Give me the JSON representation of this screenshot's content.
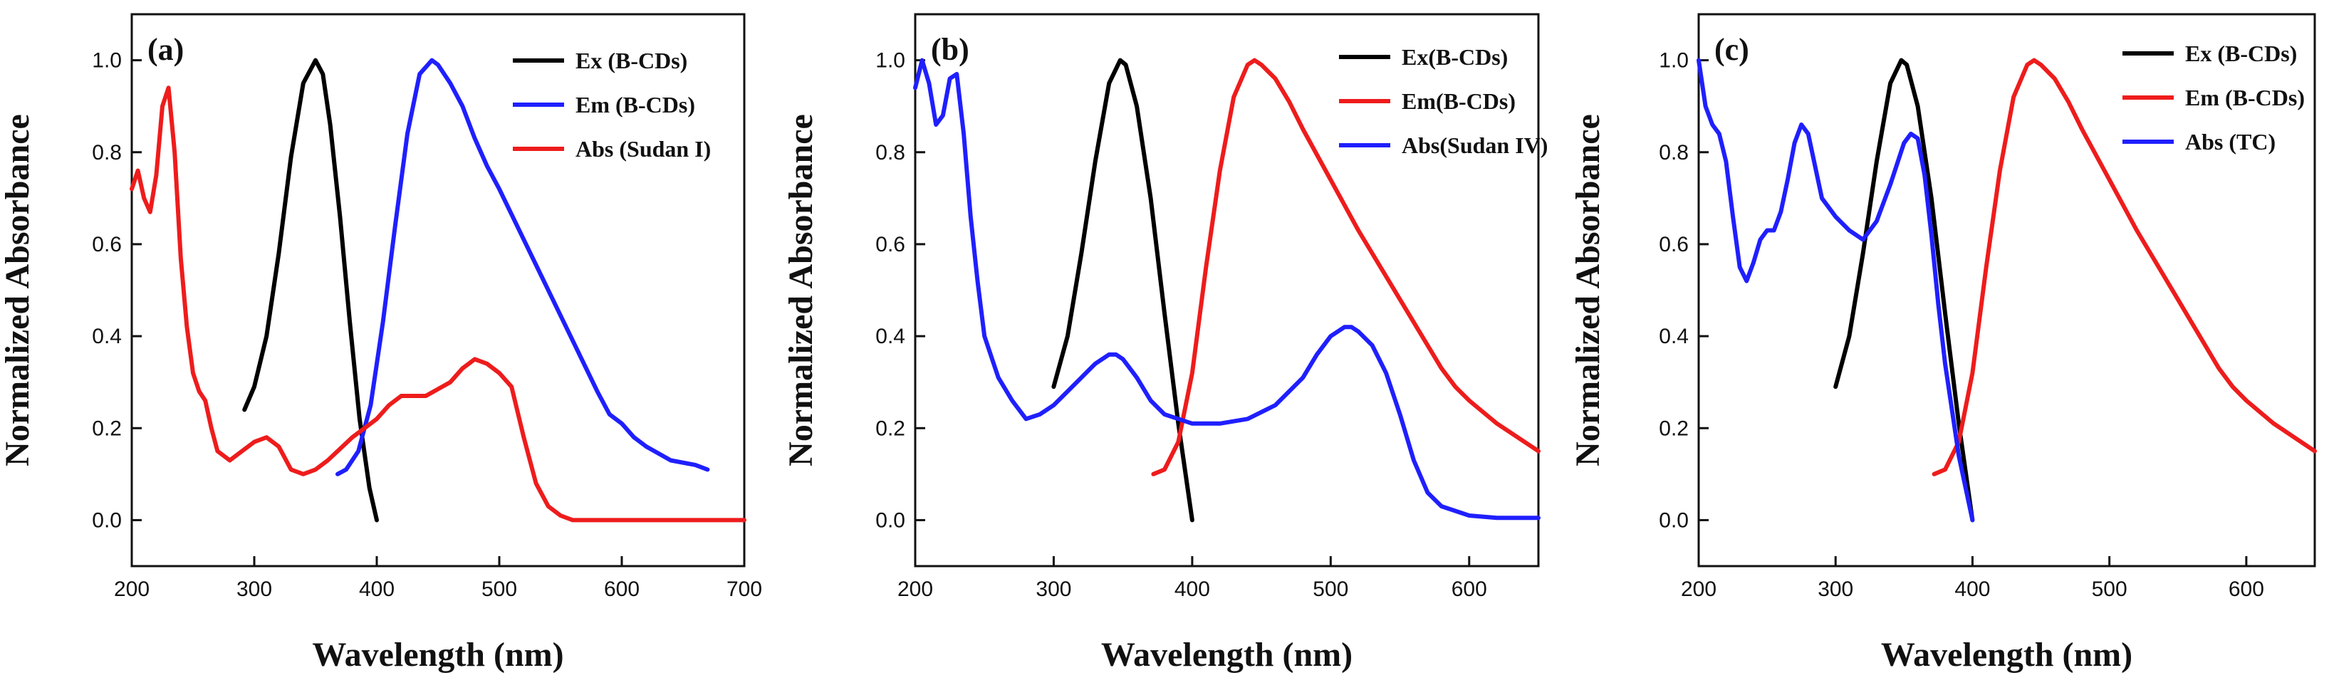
{
  "chart_data": [
    {
      "type": "line",
      "panel_label": "(a)",
      "xlabel": "Wavelength (nm)",
      "ylabel": "Normalized Absorbance",
      "xlim": [
        200,
        700
      ],
      "ylim": [
        -0.1,
        1.1
      ],
      "xticks": [
        200,
        300,
        400,
        500,
        600,
        700
      ],
      "yticks": [
        0.0,
        0.2,
        0.4,
        0.6,
        0.8,
        1.0
      ],
      "xtick_labels": [
        "200",
        "300",
        "400",
        "500",
        "600",
        "700"
      ],
      "ytick_labels": [
        "0.0",
        "0.2",
        "0.4",
        "0.6",
        "0.8",
        "1.0"
      ],
      "legend_position": "top-right",
      "series": [
        {
          "name": "Ex (B-CDs)",
          "color": "#000000",
          "x": [
            292,
            300,
            310,
            320,
            330,
            340,
            350,
            356,
            362,
            370,
            378,
            386,
            394,
            400
          ],
          "y": [
            0.24,
            0.29,
            0.4,
            0.58,
            0.79,
            0.95,
            1.0,
            0.97,
            0.86,
            0.66,
            0.43,
            0.22,
            0.07,
            0.0
          ]
        },
        {
          "name": "Em (B-CDs)",
          "color": "#1f1fff",
          "x": [
            368,
            375,
            385,
            395,
            405,
            415,
            425,
            435,
            445,
            450,
            460,
            470,
            480,
            490,
            500,
            520,
            540,
            560,
            580,
            590,
            600,
            610,
            620,
            640,
            660,
            670
          ],
          "y": [
            0.1,
            0.11,
            0.15,
            0.25,
            0.43,
            0.64,
            0.84,
            0.97,
            1.0,
            0.99,
            0.95,
            0.9,
            0.83,
            0.77,
            0.72,
            0.61,
            0.5,
            0.39,
            0.28,
            0.23,
            0.21,
            0.18,
            0.16,
            0.13,
            0.12,
            0.11
          ]
        },
        {
          "name": "Abs (Sudan I)",
          "color": "#ee1c1c",
          "x": [
            200,
            205,
            210,
            215,
            220,
            225,
            230,
            235,
            240,
            245,
            250,
            255,
            260,
            265,
            270,
            280,
            290,
            300,
            310,
            320,
            330,
            340,
            350,
            360,
            380,
            400,
            410,
            420,
            440,
            460,
            470,
            480,
            490,
            500,
            510,
            520,
            530,
            540,
            550,
            560,
            580,
            600,
            650,
            700
          ],
          "y": [
            0.72,
            0.76,
            0.7,
            0.67,
            0.75,
            0.9,
            0.94,
            0.8,
            0.57,
            0.42,
            0.32,
            0.28,
            0.26,
            0.2,
            0.15,
            0.13,
            0.15,
            0.17,
            0.18,
            0.16,
            0.11,
            0.1,
            0.11,
            0.13,
            0.18,
            0.22,
            0.25,
            0.27,
            0.27,
            0.3,
            0.33,
            0.35,
            0.34,
            0.32,
            0.29,
            0.18,
            0.08,
            0.03,
            0.01,
            0.0,
            0.0,
            0.0,
            0.0,
            0.0
          ]
        }
      ]
    },
    {
      "type": "line",
      "panel_label": "(b)",
      "xlabel": "Wavelength (nm)",
      "ylabel": "Normalized Absorbance",
      "xlim": [
        200,
        650
      ],
      "ylim": [
        -0.1,
        1.1
      ],
      "xticks": [
        200,
        300,
        400,
        500,
        600
      ],
      "yticks": [
        0.0,
        0.2,
        0.4,
        0.6,
        0.8,
        1.0
      ],
      "xtick_labels": [
        "200",
        "300",
        "400",
        "500",
        "600"
      ],
      "ytick_labels": [
        "0.0",
        "0.2",
        "0.4",
        "0.6",
        "0.8",
        "1.0"
      ],
      "legend_position": "top-right",
      "series": [
        {
          "name": "Ex(B-CDs)",
          "color": "#000000",
          "x": [
            300,
            310,
            320,
            330,
            340,
            348,
            352,
            360,
            370,
            380,
            390,
            400
          ],
          "y": [
            0.29,
            0.4,
            0.58,
            0.78,
            0.95,
            1.0,
            0.99,
            0.9,
            0.7,
            0.45,
            0.21,
            0.0
          ]
        },
        {
          "name": "Em(B-CDs)",
          "color": "#ee1c1c",
          "x": [
            372,
            380,
            390,
            400,
            410,
            420,
            430,
            440,
            445,
            450,
            460,
            470,
            480,
            500,
            520,
            540,
            560,
            580,
            590,
            600,
            620,
            640,
            650
          ],
          "y": [
            0.1,
            0.11,
            0.17,
            0.32,
            0.55,
            0.76,
            0.92,
            0.99,
            1.0,
            0.99,
            0.96,
            0.91,
            0.85,
            0.74,
            0.63,
            0.53,
            0.43,
            0.33,
            0.29,
            0.26,
            0.21,
            0.17,
            0.15
          ]
        },
        {
          "name": "Abs(Sudan IV)",
          "color": "#1f1fff",
          "x": [
            200,
            205,
            210,
            215,
            220,
            225,
            230,
            235,
            240,
            245,
            250,
            260,
            270,
            280,
            290,
            300,
            310,
            320,
            330,
            340,
            345,
            350,
            360,
            370,
            380,
            390,
            400,
            420,
            440,
            460,
            480,
            490,
            500,
            510,
            515,
            520,
            530,
            540,
            550,
            560,
            570,
            580,
            600,
            620,
            650
          ],
          "y": [
            0.94,
            1.0,
            0.95,
            0.86,
            0.88,
            0.96,
            0.97,
            0.84,
            0.66,
            0.52,
            0.4,
            0.31,
            0.26,
            0.22,
            0.23,
            0.25,
            0.28,
            0.31,
            0.34,
            0.36,
            0.36,
            0.35,
            0.31,
            0.26,
            0.23,
            0.22,
            0.21,
            0.21,
            0.22,
            0.25,
            0.31,
            0.36,
            0.4,
            0.42,
            0.42,
            0.41,
            0.38,
            0.32,
            0.23,
            0.13,
            0.06,
            0.03,
            0.01,
            0.005,
            0.005
          ]
        }
      ]
    },
    {
      "type": "line",
      "panel_label": "(c)",
      "xlabel": "Wavelength (nm)",
      "ylabel": "Normalized Absorbance",
      "xlim": [
        200,
        650
      ],
      "ylim": [
        -0.1,
        1.1
      ],
      "xticks": [
        200,
        300,
        400,
        500,
        600
      ],
      "yticks": [
        0.0,
        0.2,
        0.4,
        0.6,
        0.8,
        1.0
      ],
      "xtick_labels": [
        "200",
        "300",
        "400",
        "500",
        "600"
      ],
      "ytick_labels": [
        "0.0",
        "0.2",
        "0.4",
        "0.6",
        "0.8",
        "1.0"
      ],
      "legend_position": "top-right",
      "series": [
        {
          "name": "Ex (B-CDs)",
          "color": "#000000",
          "x": [
            300,
            310,
            320,
            330,
            340,
            348,
            352,
            360,
            370,
            380,
            390,
            400
          ],
          "y": [
            0.29,
            0.4,
            0.58,
            0.78,
            0.95,
            1.0,
            0.99,
            0.9,
            0.7,
            0.45,
            0.21,
            0.0
          ]
        },
        {
          "name": "Em (B-CDs)",
          "color": "#ee1c1c",
          "x": [
            372,
            380,
            390,
            400,
            410,
            420,
            430,
            440,
            445,
            450,
            460,
            470,
            480,
            500,
            520,
            540,
            560,
            580,
            590,
            600,
            620,
            640,
            650
          ],
          "y": [
            0.1,
            0.11,
            0.17,
            0.32,
            0.55,
            0.76,
            0.92,
            0.99,
            1.0,
            0.99,
            0.96,
            0.91,
            0.85,
            0.74,
            0.63,
            0.53,
            0.43,
            0.33,
            0.29,
            0.26,
            0.21,
            0.17,
            0.15
          ]
        },
        {
          "name": "Abs (TC)",
          "color": "#1f1fff",
          "x": [
            200,
            205,
            210,
            215,
            220,
            225,
            230,
            235,
            240,
            245,
            250,
            255,
            260,
            265,
            270,
            275,
            280,
            285,
            290,
            300,
            310,
            320,
            330,
            340,
            350,
            355,
            360,
            365,
            370,
            375,
            380,
            390,
            400
          ],
          "y": [
            1.0,
            0.9,
            0.86,
            0.84,
            0.78,
            0.66,
            0.55,
            0.52,
            0.56,
            0.61,
            0.63,
            0.63,
            0.67,
            0.74,
            0.82,
            0.86,
            0.84,
            0.77,
            0.7,
            0.66,
            0.63,
            0.61,
            0.65,
            0.73,
            0.82,
            0.84,
            0.83,
            0.75,
            0.62,
            0.47,
            0.34,
            0.14,
            0.0
          ]
        }
      ]
    }
  ]
}
